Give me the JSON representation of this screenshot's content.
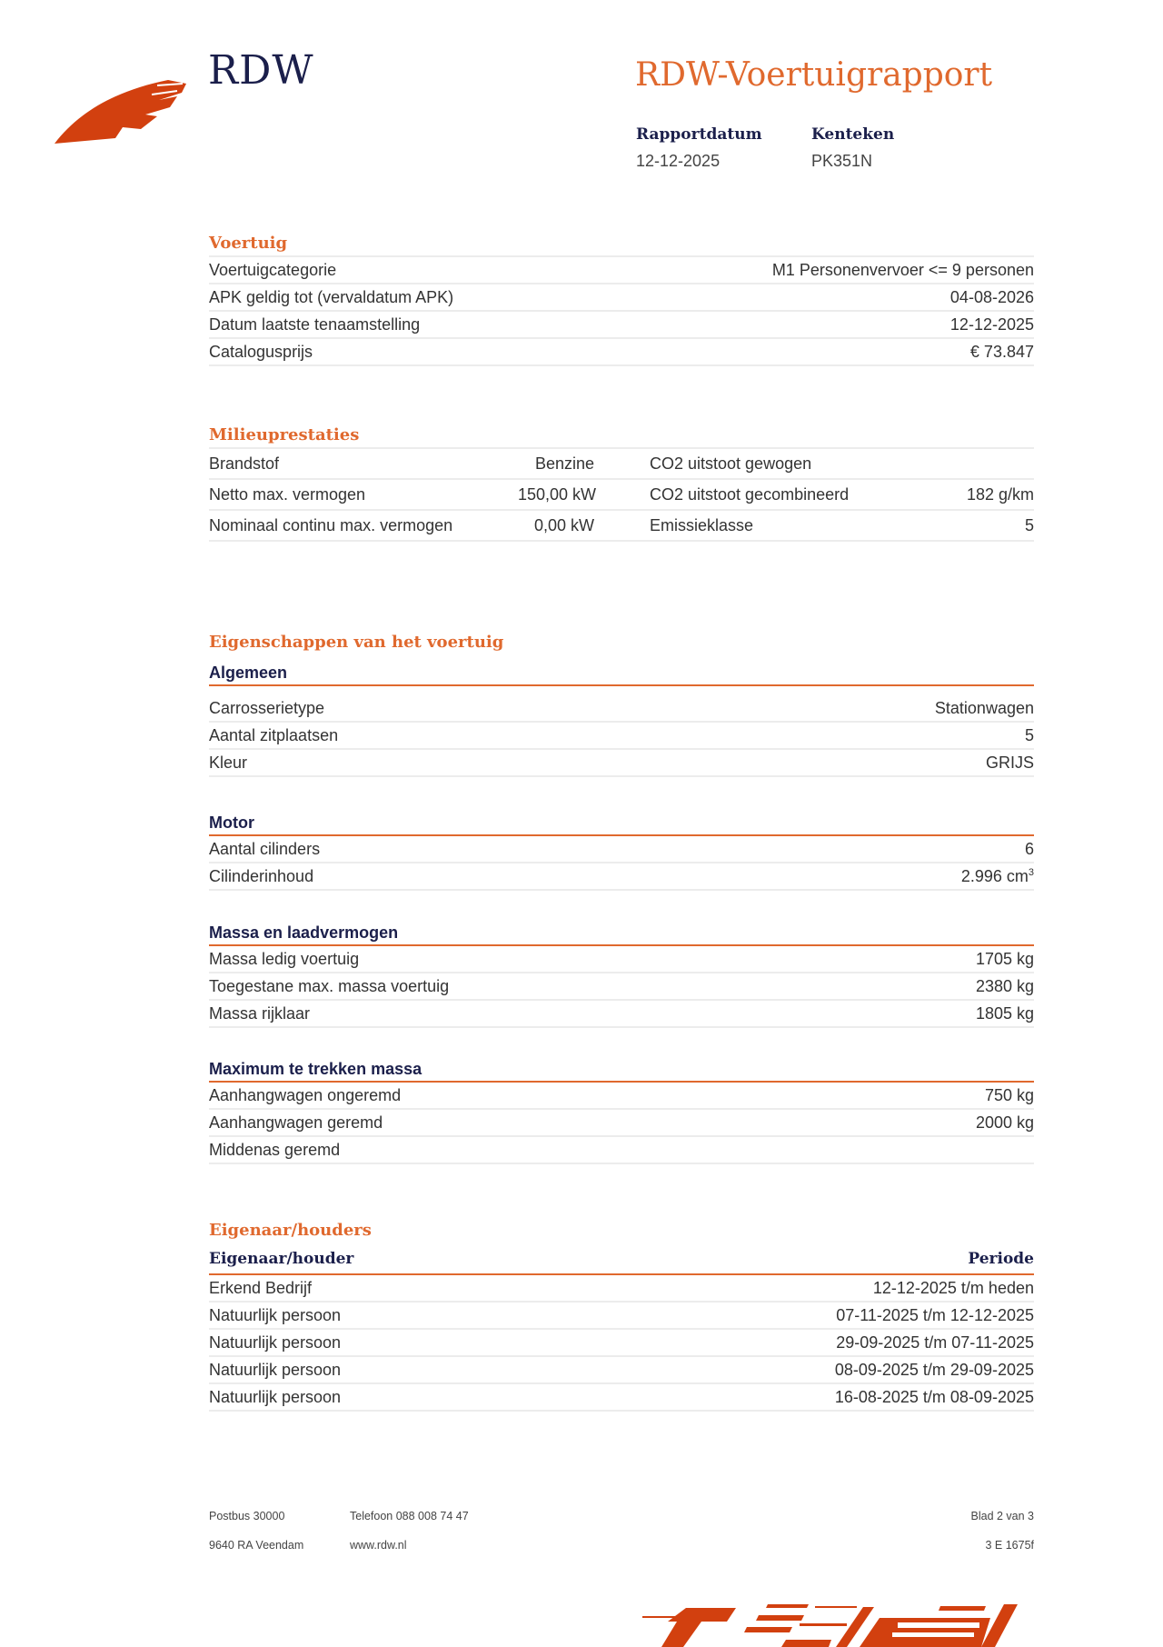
{
  "header": {
    "brand": "RDW",
    "title": "RDW-Voertuigrapport",
    "report_date_label": "Rapportdatum",
    "report_date": "12-12-2025",
    "plate_label": "Kenteken",
    "plate": "PK351N"
  },
  "colors": {
    "accent": "#e0692e",
    "navy": "#1b1f4b",
    "logo": "#d2400f"
  },
  "voertuig": {
    "heading": "Voertuig",
    "rows": [
      {
        "label": "Voertuigcategorie",
        "value": "M1 Personenvervoer <= 9 personen"
      },
      {
        "label": "APK geldig tot (vervaldatum APK)",
        "value": "04-08-2026"
      },
      {
        "label": "Datum laatste tenaamstelling",
        "value": "12-12-2025"
      },
      {
        "label": "Catalogusprijs",
        "value": "€ 73.847"
      }
    ]
  },
  "milieu": {
    "heading": "Milieuprestaties",
    "rows": [
      {
        "label": "Brandstof",
        "value": "Benzine",
        "label2": "CO2 uitstoot gewogen",
        "value2": ""
      },
      {
        "label": "Netto max. vermogen",
        "value": "150,00 kW",
        "label2": "CO2 uitstoot gecombineerd",
        "value2": "182 g/km"
      },
      {
        "label": "Nominaal continu max. vermogen",
        "value": "0,00 kW",
        "label2": "Emissieklasse",
        "value2": "5"
      }
    ]
  },
  "eigenschappen": {
    "heading": "Eigenschappen van het voertuig",
    "groups": [
      {
        "title": "Algemeen",
        "rows": [
          {
            "label": "Carrosserietype",
            "value": "Stationwagen"
          },
          {
            "label": "Aantal zitplaatsen",
            "value": "5"
          },
          {
            "label": "Kleur",
            "value": "GRIJS"
          }
        ]
      },
      {
        "title": "Motor",
        "rows": [
          {
            "label": "Aantal cilinders",
            "value": "6"
          },
          {
            "label": "Cilinderinhoud",
            "value": "2.996 cm",
            "sup": "3"
          }
        ]
      },
      {
        "title": "Massa en laadvermogen",
        "rows": [
          {
            "label": "Massa ledig voertuig",
            "value": "1705 kg"
          },
          {
            "label": "Toegestane max. massa voertuig",
            "value": "2380 kg"
          },
          {
            "label": "Massa rijklaar",
            "value": "1805 kg"
          }
        ]
      },
      {
        "title": "Maximum te trekken massa",
        "rows": [
          {
            "label": "Aanhangwagen ongeremd",
            "value": "750 kg"
          },
          {
            "label": "Aanhangwagen geremd",
            "value": "2000 kg"
          },
          {
            "label": "Middenas geremd",
            "value": ""
          }
        ]
      }
    ]
  },
  "eigenaren": {
    "heading": "Eigenaar/houders",
    "col1": "Eigenaar/houder",
    "col2": "Periode",
    "rows": [
      {
        "label": "Erkend Bedrijf",
        "value": "12-12-2025 t/m heden"
      },
      {
        "label": "Natuurlijk persoon",
        "value": "07-11-2025 t/m 12-12-2025"
      },
      {
        "label": "Natuurlijk persoon",
        "value": "29-09-2025 t/m 07-11-2025"
      },
      {
        "label": "Natuurlijk persoon",
        "value": "08-09-2025 t/m 29-09-2025"
      },
      {
        "label": "Natuurlijk persoon",
        "value": "16-08-2025 t/m 08-09-2025"
      }
    ]
  },
  "footer": {
    "postbus": "Postbus 30000",
    "city": "9640 RA Veendam",
    "phone": "Telefoon 088 008 74 47",
    "web": "www.rdw.nl",
    "page": "Blad 2 van 3",
    "code": "3 E 1675f"
  }
}
